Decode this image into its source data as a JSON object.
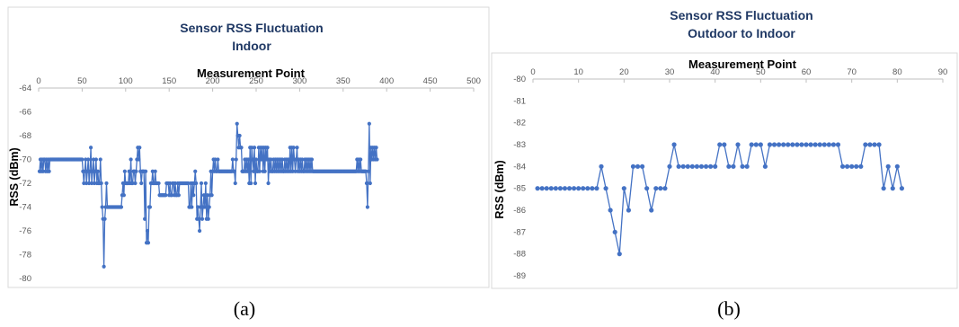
{
  "chart_data": [
    {
      "type": "line",
      "panel_label": "(a)",
      "title": "Sensor RSS Fluctuation",
      "subtitle": "Indoor",
      "xlabel": "Measurement Point",
      "ylabel": "RSS (dBm)",
      "xlim": [
        0,
        500
      ],
      "ylim": [
        -80,
        -64
      ],
      "x_ticks": [
        "0",
        "50",
        "100",
        "150",
        "200",
        "250",
        "300",
        "350",
        "400",
        "450",
        "500"
      ],
      "y_ticks": [
        "-64",
        "-66",
        "-68",
        "-70",
        "-72",
        "-74",
        "-76",
        "-78",
        "-80"
      ],
      "x_axis_position": "top",
      "grid": false,
      "color": "#4472c4",
      "series": [
        {
          "values": [
            -71,
            -70,
            -71,
            -70,
            -71,
            -70,
            -70,
            -71,
            -70,
            -71,
            -70,
            -71,
            -70,
            -70,
            -70,
            -70,
            -70,
            -70,
            -70,
            -70,
            -70,
            -70,
            -70,
            -70,
            -70,
            -70,
            -70,
            -70,
            -70,
            -70,
            -70,
            -70,
            -70,
            -70,
            -70,
            -70,
            -70,
            -70,
            -70,
            -70,
            -70,
            -70,
            -70,
            -70,
            -70,
            -70,
            -70,
            -70,
            -70,
            -70,
            -71,
            -72,
            -71,
            -70,
            -72,
            -71,
            -70,
            -72,
            -71,
            -69,
            -72,
            -71,
            -70,
            -72,
            -71,
            -70,
            -72,
            -71,
            -72,
            -72,
            -70,
            -72,
            -74,
            -75,
            -79,
            -75,
            -74,
            -72,
            -74,
            -74,
            -74,
            -74,
            -74,
            -74,
            -74,
            -74,
            -74,
            -74,
            -74,
            -74,
            -74,
            -74,
            -74,
            -74,
            -74,
            -73,
            -72,
            -73,
            -71,
            -72,
            -72,
            -72,
            -72,
            -71,
            -72,
            -70,
            -72,
            -72,
            -71,
            -71,
            -72,
            -71,
            -70,
            -69,
            -70,
            -69,
            -71,
            -72,
            -71,
            -71,
            -71,
            -75,
            -71,
            -77,
            -76,
            -77,
            -74,
            -74,
            -72,
            -72,
            -71,
            -72,
            -72,
            -71,
            -72,
            -72,
            -72,
            -72,
            -73,
            -73,
            -73,
            -73,
            -73,
            -73,
            -73,
            -73,
            -72,
            -72,
            -72,
            -73,
            -72,
            -73,
            -73,
            -72,
            -72,
            -73,
            -72,
            -73,
            -73,
            -72,
            -73,
            -72,
            -72,
            -72,
            -72,
            -72,
            -72,
            -72,
            -72,
            -72,
            -72,
            -72,
            -74,
            -74,
            -72,
            -74,
            -72,
            -73,
            -72,
            -71,
            -72,
            -75,
            -74,
            -75,
            -76,
            -74,
            -72,
            -75,
            -74,
            -73,
            -74,
            -72,
            -75,
            -73,
            -75,
            -74,
            -73,
            -71,
            -73,
            -71,
            -70,
            -71,
            -70,
            -71,
            -71,
            -70,
            -71,
            -71,
            -71,
            -71,
            -71,
            -71,
            -71,
            -71,
            -71,
            -71,
            -71,
            -71,
            -71,
            -71,
            -71,
            -71,
            -70,
            -71,
            -71,
            -72,
            -70,
            -67,
            -68,
            -69,
            -68,
            -69,
            -69,
            -71,
            -71,
            -71,
            -70,
            -71,
            -70,
            -71,
            -70,
            -72,
            -69,
            -72,
            -69,
            -70,
            -71,
            -69,
            -72,
            -70,
            -71,
            -71,
            -69,
            -71,
            -69,
            -70,
            -69,
            -71,
            -69,
            -71,
            -69,
            -70,
            -69,
            -72,
            -70,
            -71,
            -70,
            -71,
            -71,
            -70,
            -71,
            -70,
            -71,
            -70,
            -71,
            -70,
            -71,
            -70,
            -71,
            -70,
            -71,
            -71,
            -70,
            -71,
            -70,
            -71,
            -70,
            -71,
            -69,
            -71,
            -69,
            -71,
            -69,
            -70,
            -71,
            -70,
            -69,
            -71,
            -70,
            -71,
            -70,
            -71,
            -70,
            -71,
            -71,
            -70,
            -71,
            -70,
            -71,
            -70,
            -71,
            -70,
            -71,
            -70,
            -71,
            -71,
            -71,
            -71,
            -71,
            -71,
            -71,
            -71,
            -71,
            -71,
            -71,
            -71,
            -71,
            -71,
            -71,
            -71,
            -71,
            -71,
            -71,
            -71,
            -71,
            -71,
            -71,
            -71,
            -71,
            -71,
            -71,
            -71,
            -71,
            -71,
            -71,
            -71,
            -71,
            -71,
            -71,
            -71,
            -71,
            -71,
            -71,
            -71,
            -71,
            -71,
            -71,
            -71,
            -71,
            -71,
            -71,
            -71,
            -71,
            -71,
            -71,
            -70,
            -71,
            -70,
            -71,
            -70,
            -71,
            -71,
            -71,
            -71,
            -71,
            -71,
            -72,
            -74,
            -71,
            -67,
            -72,
            -69,
            -70,
            -69,
            -70,
            -69,
            -70,
            -69,
            -70
          ]
        }
      ]
    },
    {
      "type": "line",
      "panel_label": "(b)",
      "title": "Sensor RSS Fluctuation",
      "subtitle": "Outdoor to Indoor",
      "xlabel": "Measurement Point",
      "ylabel": "RSS (dBm)",
      "xlim": [
        0,
        90
      ],
      "ylim": [
        -89,
        -80
      ],
      "x_ticks": [
        "0",
        "10",
        "20",
        "30",
        "40",
        "50",
        "60",
        "70",
        "80",
        "90"
      ],
      "y_ticks": [
        "-80",
        "-81",
        "-82",
        "-83",
        "-84",
        "-85",
        "-86",
        "-87",
        "-88",
        "-89"
      ],
      "x_axis_position": "top",
      "grid": false,
      "color": "#4472c4",
      "series": [
        {
          "x": [
            1,
            2,
            3,
            4,
            5,
            6,
            7,
            8,
            9,
            10,
            11,
            12,
            13,
            14,
            15,
            16,
            17,
            18,
            19,
            20,
            21,
            22,
            23,
            24,
            25,
            26,
            27,
            28,
            29,
            30,
            31,
            32,
            33,
            34,
            35,
            36,
            37,
            38,
            39,
            40,
            41,
            42,
            43,
            44,
            45,
            46,
            47,
            48,
            49,
            50,
            51,
            52,
            53,
            54,
            55,
            56,
            57,
            58,
            59,
            60,
            61,
            62,
            63,
            64,
            65,
            66,
            67,
            68,
            69,
            70,
            71,
            72,
            73,
            74,
            75,
            76,
            77,
            78,
            79,
            80,
            81
          ],
          "values": [
            -85,
            -85,
            -85,
            -85,
            -85,
            -85,
            -85,
            -85,
            -85,
            -85,
            -85,
            -85,
            -85,
            -85,
            -84,
            -85,
            -86,
            -87,
            -88,
            -85,
            -86,
            -84,
            -84,
            -84,
            -85,
            -86,
            -85,
            -85,
            -85,
            -84,
            -83,
            -84,
            -84,
            -84,
            -84,
            -84,
            -84,
            -84,
            -84,
            -84,
            -83,
            -83,
            -84,
            -84,
            -83,
            -84,
            -84,
            -83,
            -83,
            -83,
            -84,
            -83,
            -83,
            -83,
            -83,
            -83,
            -83,
            -83,
            -83,
            -83,
            -83,
            -83,
            -83,
            -83,
            -83,
            -83,
            -83,
            -84,
            -84,
            -84,
            -84,
            -84,
            -83,
            -83,
            -83,
            -83,
            -85,
            -84,
            -85,
            -84,
            -85
          ]
        }
      ]
    }
  ]
}
